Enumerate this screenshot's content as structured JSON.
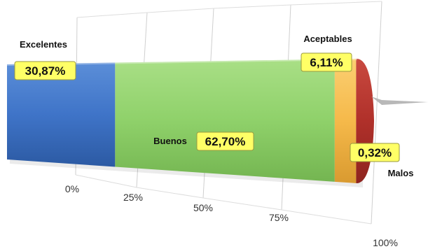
{
  "chart_data": {
    "type": "bar",
    "orientation": "horizontal-stacked-100",
    "title": "",
    "xlabel": "",
    "ylabel": "",
    "xlim": [
      0,
      100
    ],
    "grid": true,
    "legend": "none",
    "tick_labels": [
      "0%",
      "25%",
      "50%",
      "75%",
      "100%"
    ],
    "series": [
      {
        "name": "Excelentes",
        "value": 30.87,
        "label": "30,87%",
        "color": "#3f74c8"
      },
      {
        "name": "Buenos",
        "value": 62.7,
        "label": "62,70%",
        "color": "#8fd16a"
      },
      {
        "name": "Aceptables",
        "value": 6.11,
        "label": "6,11%",
        "color": "#f5b94a"
      },
      {
        "name": "Malos",
        "value": 0.32,
        "label": "0,32%",
        "color": "#b0302a"
      }
    ]
  }
}
